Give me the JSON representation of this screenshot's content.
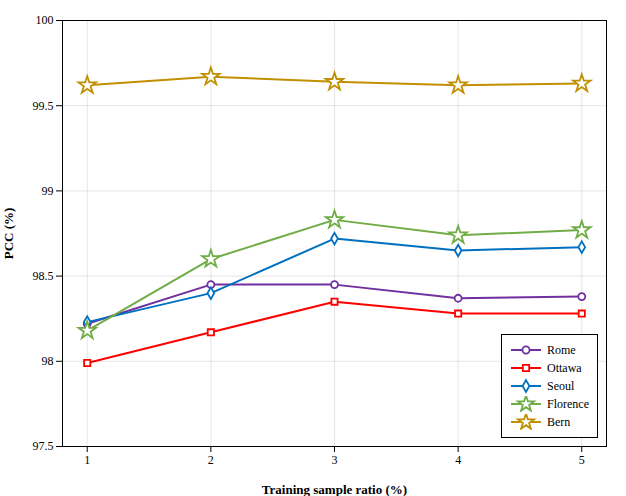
{
  "chart_data": {
    "type": "line",
    "xlabel": "Training sample ratio (%)",
    "ylabel": "PCC (%)",
    "x": [
      1,
      2,
      3,
      4,
      5
    ],
    "series": [
      {
        "name": "Rome",
        "color": "#7030a0",
        "marker": "circle",
        "values": [
          98.22,
          98.45,
          98.45,
          98.37,
          98.38
        ]
      },
      {
        "name": "Ottawa",
        "color": "#ff0000",
        "marker": "square",
        "values": [
          97.99,
          98.17,
          98.35,
          98.28,
          98.28
        ]
      },
      {
        "name": "Seoul",
        "color": "#0070c0",
        "marker": "diamond",
        "values": [
          98.23,
          98.4,
          98.72,
          98.65,
          98.67
        ]
      },
      {
        "name": "Florence",
        "color": "#70ad47",
        "marker": "star",
        "values": [
          98.18,
          98.6,
          98.83,
          98.74,
          98.77
        ]
      },
      {
        "name": "Bern",
        "color": "#c09000",
        "marker": "star",
        "values": [
          99.62,
          99.67,
          99.64,
          99.62,
          99.63
        ]
      }
    ],
    "xlim": [
      0.8,
      5.2
    ],
    "ylim": [
      97.5,
      100
    ],
    "xticks": [
      1,
      2,
      3,
      4,
      5
    ],
    "yticks": [
      97.5,
      98.0,
      98.5,
      99.0,
      99.5,
      100.0
    ],
    "grid": true,
    "legend": "lower right"
  }
}
